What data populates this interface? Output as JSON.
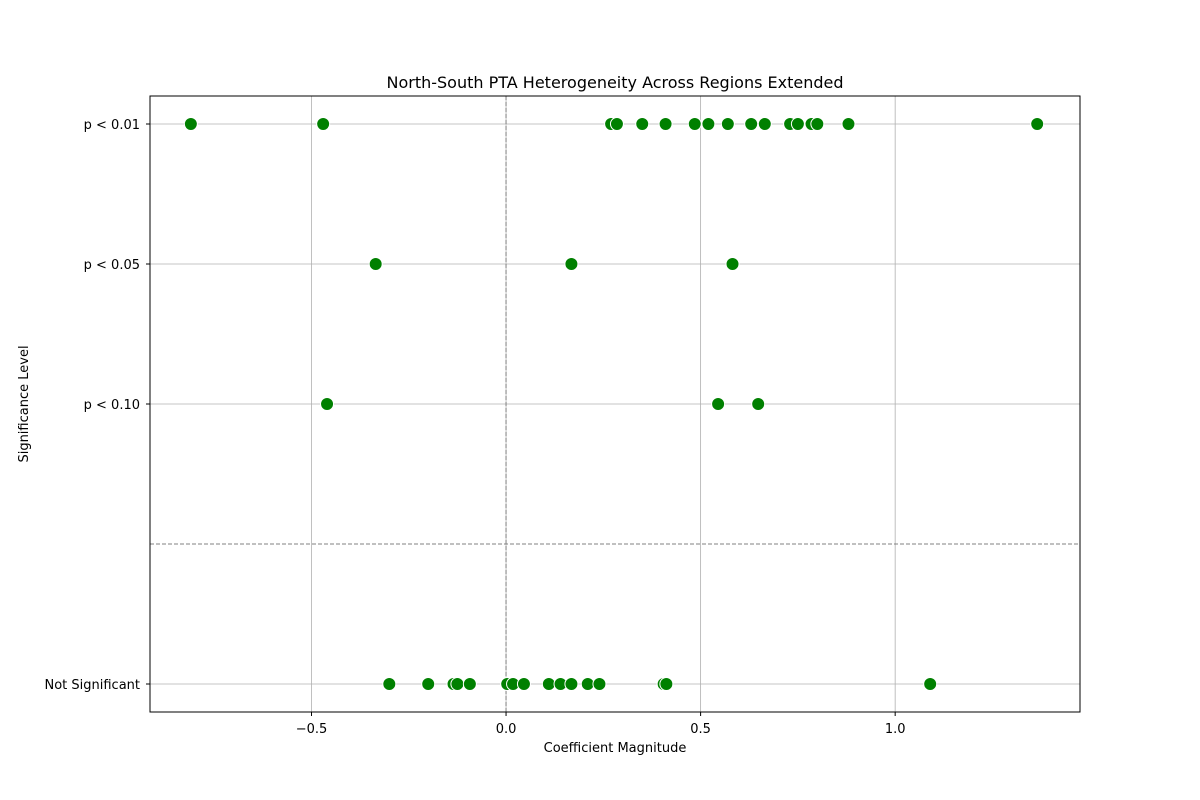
{
  "chart_data": {
    "type": "scatter",
    "title": "North-South PTA Heterogeneity Across Regions Extended",
    "xlabel": "Coefficient Magnitude",
    "ylabel": "Significance Level",
    "xlim": [
      -0.915,
      1.475
    ],
    "x_ticks": [
      -0.5,
      0.0,
      0.5,
      1.0
    ],
    "x_tick_labels": [
      "−0.5",
      "0.0",
      "0.5",
      "1.0"
    ],
    "y_levels": [
      {
        "label": "p < 0.01",
        "value": 4
      },
      {
        "label": "p < 0.05",
        "value": 3
      },
      {
        "label": "p < 0.10",
        "value": 2
      },
      {
        "label": "Not Significant",
        "value": 0
      }
    ],
    "ylim": [
      -0.2,
      4.2
    ],
    "grid": true,
    "reference_lines": {
      "vertical_x": 0.0,
      "horizontal_y": 1.0,
      "style": "dashed"
    },
    "marker_color": "#008000",
    "points": [
      {
        "x": -0.81,
        "y": 4
      },
      {
        "x": -0.47,
        "y": 4
      },
      {
        "x": 0.27,
        "y": 4
      },
      {
        "x": 0.285,
        "y": 4
      },
      {
        "x": 0.35,
        "y": 4
      },
      {
        "x": 0.41,
        "y": 4
      },
      {
        "x": 0.485,
        "y": 4
      },
      {
        "x": 0.52,
        "y": 4
      },
      {
        "x": 0.57,
        "y": 4
      },
      {
        "x": 0.63,
        "y": 4
      },
      {
        "x": 0.665,
        "y": 4
      },
      {
        "x": 0.73,
        "y": 4
      },
      {
        "x": 0.75,
        "y": 4
      },
      {
        "x": 0.785,
        "y": 4
      },
      {
        "x": 0.8,
        "y": 4
      },
      {
        "x": 0.88,
        "y": 4
      },
      {
        "x": 1.365,
        "y": 4
      },
      {
        "x": -0.335,
        "y": 3
      },
      {
        "x": 0.168,
        "y": 3
      },
      {
        "x": 0.582,
        "y": 3
      },
      {
        "x": -0.46,
        "y": 2
      },
      {
        "x": 0.545,
        "y": 2
      },
      {
        "x": 0.648,
        "y": 2
      },
      {
        "x": -0.3,
        "y": 0
      },
      {
        "x": -0.2,
        "y": 0
      },
      {
        "x": -0.135,
        "y": 0
      },
      {
        "x": -0.125,
        "y": 0
      },
      {
        "x": -0.093,
        "y": 0
      },
      {
        "x": 0.003,
        "y": 0
      },
      {
        "x": 0.018,
        "y": 0
      },
      {
        "x": 0.046,
        "y": 0
      },
      {
        "x": 0.11,
        "y": 0
      },
      {
        "x": 0.14,
        "y": 0
      },
      {
        "x": 0.168,
        "y": 0
      },
      {
        "x": 0.21,
        "y": 0
      },
      {
        "x": 0.24,
        "y": 0
      },
      {
        "x": 0.405,
        "y": 0
      },
      {
        "x": 0.412,
        "y": 0
      },
      {
        "x": 1.09,
        "y": 0
      }
    ]
  }
}
